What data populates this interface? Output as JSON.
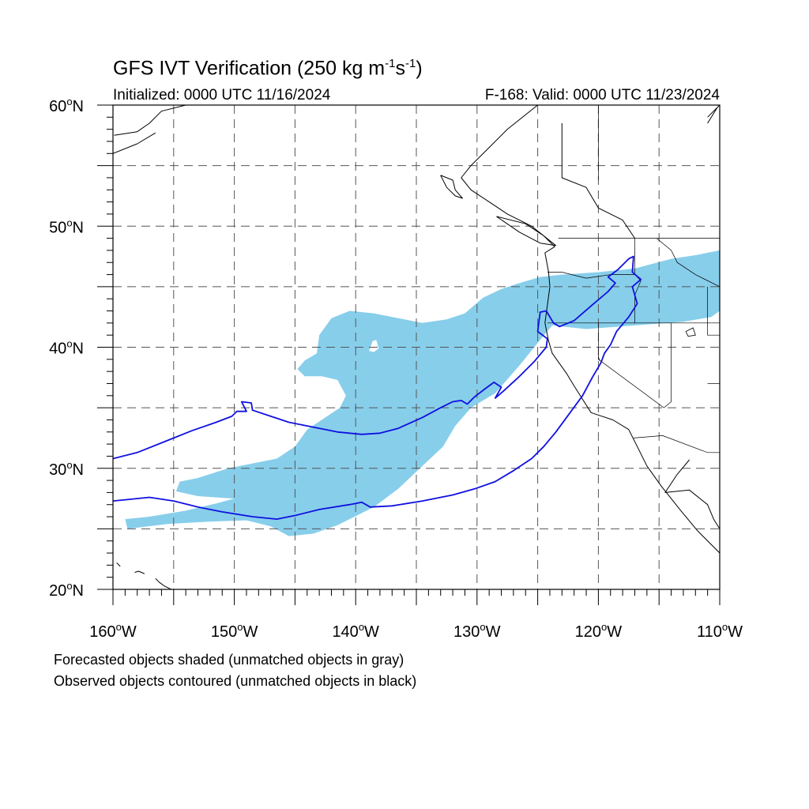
{
  "title": {
    "prefix": "GFS IVT Verification (250 kg m",
    "exp1": "-1",
    "middle": "s",
    "exp2": "-1",
    "suffix": ")"
  },
  "initialized": "Initialized: 0000 UTC 11/16/2024",
  "valid": "F-168: Valid: 0000 UTC 11/23/2024",
  "legend_notes": [
    "Forecasted objects shaded (unmatched objects in gray)",
    "Observed objects contoured (unmatched objects in black)"
  ],
  "map": {
    "extent": {
      "lon": [
        -160,
        -110
      ],
      "lat": [
        20,
        60
      ]
    },
    "lon_labels": [
      {
        "lon": -160,
        "text": "160",
        "hemi": "W"
      },
      {
        "lon": -150,
        "text": "150",
        "hemi": "W"
      },
      {
        "lon": -140,
        "text": "140",
        "hemi": "W"
      },
      {
        "lon": -130,
        "text": "130",
        "hemi": "W"
      },
      {
        "lon": -120,
        "text": "120",
        "hemi": "W"
      },
      {
        "lon": -110,
        "text": "110",
        "hemi": "W"
      }
    ],
    "lat_labels": [
      {
        "lat": 60,
        "text": "60",
        "hemi": "N"
      },
      {
        "lat": 50,
        "text": "50",
        "hemi": "N"
      },
      {
        "lat": 40,
        "text": "40",
        "hemi": "N"
      },
      {
        "lat": 30,
        "text": "30",
        "hemi": "N"
      },
      {
        "lat": 20,
        "text": "20",
        "hemi": "N"
      }
    ],
    "grid_lons": [
      -155,
      -150,
      -145,
      -140,
      -135,
      -130,
      -125,
      -120,
      -115
    ],
    "grid_lats": [
      25,
      30,
      35,
      40,
      45,
      50,
      55
    ],
    "colors": {
      "forecast_fill": "#87ceeb",
      "observed_contour": "#1010e0",
      "coastline": "#000000",
      "grid": "#555555"
    },
    "forecast_object": [
      [
        -158.8,
        25.0
      ],
      [
        -155.5,
        25.4
      ],
      [
        -152,
        25.6
      ],
      [
        -149,
        25.7
      ],
      [
        -147,
        25.2
      ],
      [
        -145.5,
        24.4
      ],
      [
        -143.5,
        24.6
      ],
      [
        -141.5,
        25.3
      ],
      [
        -138.5,
        26.8
      ],
      [
        -136.5,
        28.3
      ],
      [
        -134.5,
        30.2
      ],
      [
        -132.8,
        31.8
      ],
      [
        -131.8,
        33.5
      ],
      [
        -130.5,
        35.0
      ],
      [
        -128.5,
        36.2
      ],
      [
        -126.5,
        38.5
      ],
      [
        -124.8,
        40.6
      ],
      [
        -123.8,
        41.8
      ],
      [
        -121,
        41.5
      ],
      [
        -117,
        41.8
      ],
      [
        -113,
        42.1
      ],
      [
        -110.7,
        42.5
      ],
      [
        -110.0,
        43.0
      ],
      [
        -110.0,
        48.0
      ],
      [
        -112,
        47.6
      ],
      [
        -114,
        47.3
      ],
      [
        -117,
        46.5
      ],
      [
        -120,
        46.2
      ],
      [
        -123,
        46.0
      ],
      [
        -124.8,
        45.8
      ],
      [
        -126.5,
        45.3
      ],
      [
        -128,
        44.8
      ],
      [
        -129.5,
        44.1
      ],
      [
        -131,
        42.8
      ],
      [
        -132.5,
        42.3
      ],
      [
        -134.5,
        42.0
      ],
      [
        -136.5,
        42.4
      ],
      [
        -138.5,
        42.8
      ],
      [
        -140.5,
        43.0
      ],
      [
        -142.0,
        42.4
      ],
      [
        -143.0,
        41.0
      ],
      [
        -143.2,
        39.5
      ],
      [
        -144.2,
        38.9
      ],
      [
        -144.8,
        38.2
      ],
      [
        -144.2,
        37.6
      ],
      [
        -142.8,
        37.6
      ],
      [
        -141.5,
        37.3
      ],
      [
        -140.8,
        36.0
      ],
      [
        -141.3,
        35.0
      ],
      [
        -142.8,
        34.0
      ],
      [
        -144.0,
        33.2
      ],
      [
        -145.0,
        31.8
      ],
      [
        -146.5,
        30.8
      ],
      [
        -148.5,
        30.4
      ],
      [
        -150.5,
        30.0
      ],
      [
        -153.0,
        29.2
      ],
      [
        -154.5,
        28.9
      ],
      [
        -154.8,
        28.1
      ],
      [
        -153.0,
        27.7
      ],
      [
        -150.0,
        27.5
      ],
      [
        -151.5,
        27.1
      ],
      [
        -154.0,
        26.5
      ],
      [
        -157.0,
        26.0
      ],
      [
        -159.0,
        25.8
      ],
      [
        -158.8,
        25.0
      ]
    ],
    "forecast_hole": [
      [
        -138.9,
        39.7
      ],
      [
        -138.6,
        40.5
      ],
      [
        -138.3,
        40.6
      ],
      [
        -138.1,
        39.9
      ],
      [
        -138.5,
        39.6
      ]
    ],
    "observed_object": [
      [
        -160.0,
        30.8
      ],
      [
        -158,
        31.3
      ],
      [
        -155.5,
        32.3
      ],
      [
        -153.5,
        33.1
      ],
      [
        -151.5,
        33.8
      ],
      [
        -150.2,
        34.3
      ],
      [
        -149.8,
        34.7
      ],
      [
        -149.0,
        34.7
      ],
      [
        -149.4,
        35.5
      ],
      [
        -148.6,
        35.4
      ],
      [
        -148.5,
        34.8
      ],
      [
        -147.0,
        34.3
      ],
      [
        -145.5,
        33.8
      ],
      [
        -143.5,
        33.4
      ],
      [
        -141.5,
        33.0
      ],
      [
        -139.5,
        32.8
      ],
      [
        -138.0,
        32.9
      ],
      [
        -136.5,
        33.3
      ],
      [
        -134.5,
        34.2
      ],
      [
        -133.0,
        35.0
      ],
      [
        -132.0,
        35.5
      ],
      [
        -131.3,
        35.6
      ],
      [
        -130.8,
        35.3
      ],
      [
        -130.2,
        35.9
      ],
      [
        -129.3,
        36.6
      ],
      [
        -128.6,
        37.1
      ],
      [
        -128.0,
        36.7
      ],
      [
        -128.5,
        35.8
      ],
      [
        -127.8,
        36.4
      ],
      [
        -126.5,
        37.6
      ],
      [
        -125.3,
        38.8
      ],
      [
        -124.3,
        40.0
      ],
      [
        -124.2,
        40.7
      ],
      [
        -125.0,
        41.3
      ],
      [
        -124.8,
        42.9
      ],
      [
        -124.3,
        43.0
      ],
      [
        -123.7,
        42.0
      ],
      [
        -123.2,
        41.7
      ],
      [
        -122.0,
        42.2
      ],
      [
        -120.5,
        43.5
      ],
      [
        -119.2,
        44.6
      ],
      [
        -118.6,
        45.3
      ],
      [
        -119.2,
        45.8
      ],
      [
        -118.4,
        46.4
      ],
      [
        -117.5,
        47.3
      ],
      [
        -117.1,
        47.5
      ],
      [
        -117.2,
        46.2
      ],
      [
        -116.5,
        45.6
      ],
      [
        -117.2,
        45.0
      ],
      [
        -116.8,
        43.6
      ],
      [
        -117.5,
        42.5
      ],
      [
        -118.5,
        41.3
      ],
      [
        -119.0,
        40.2
      ],
      [
        -119.5,
        39.5
      ],
      [
        -119.8,
        38.7
      ],
      [
        -120.5,
        37.5
      ],
      [
        -121.3,
        36.0
      ],
      [
        -122.4,
        34.5
      ],
      [
        -123.5,
        33.0
      ],
      [
        -124.5,
        31.8
      ],
      [
        -125.5,
        30.8
      ],
      [
        -127.0,
        29.8
      ],
      [
        -128.5,
        28.9
      ],
      [
        -130.2,
        28.3
      ],
      [
        -132.0,
        27.8
      ],
      [
        -134.5,
        27.3
      ],
      [
        -137.0,
        26.9
      ],
      [
        -138.8,
        26.8
      ],
      [
        -139.5,
        27.2
      ],
      [
        -140.5,
        27.0
      ],
      [
        -143.0,
        26.6
      ],
      [
        -145.0,
        26.1
      ],
      [
        -146.5,
        25.8
      ],
      [
        -148.5,
        26.0
      ],
      [
        -151.0,
        26.4
      ],
      [
        -153.0,
        26.8
      ],
      [
        -155.0,
        27.3
      ],
      [
        -157.0,
        27.6
      ],
      [
        -159.0,
        27.4
      ],
      [
        -160.0,
        27.3
      ]
    ],
    "coastlines": [
      [
        [
          -125.0,
          60.0
        ],
        [
          -127.5,
          58.0
        ],
        [
          -129.0,
          56.5
        ],
        [
          -130.5,
          55.0
        ],
        [
          -131.3,
          54.0
        ],
        [
          -130.5,
          53.0
        ],
        [
          -129.0,
          52.0
        ],
        [
          -127.5,
          51.0
        ],
        [
          -125.5,
          50.0
        ],
        [
          -124.5,
          49.2
        ],
        [
          -123.6,
          48.3
        ],
        [
          -124.4,
          47.8
        ],
        [
          -124.1,
          46.2
        ],
        [
          -124.0,
          45.0
        ],
        [
          -124.2,
          43.5
        ],
        [
          -124.4,
          42.0
        ],
        [
          -124.1,
          40.5
        ],
        [
          -123.8,
          39.5
        ],
        [
          -122.6,
          37.8
        ],
        [
          -122.0,
          36.8
        ],
        [
          -121.3,
          35.7
        ],
        [
          -120.6,
          34.6
        ],
        [
          -118.8,
          34.0
        ],
        [
          -117.5,
          33.2
        ],
        [
          -116.8,
          31.8
        ],
        [
          -116.0,
          30.2
        ],
        [
          -114.8,
          28.5
        ],
        [
          -113.2,
          26.5
        ],
        [
          -111.8,
          24.8
        ],
        [
          -110.0,
          23.0
        ]
      ],
      [
        [
          -133.0,
          54.2
        ],
        [
          -132.0,
          53.8
        ],
        [
          -131.8,
          53.0
        ],
        [
          -131.2,
          52.3
        ],
        [
          -131.8,
          52.5
        ],
        [
          -132.5,
          53.2
        ],
        [
          -133.0,
          54.2
        ]
      ],
      [
        [
          -128.4,
          50.8
        ],
        [
          -126.0,
          50.2
        ],
        [
          -124.5,
          49.2
        ],
        [
          -123.5,
          48.4
        ],
        [
          -124.8,
          48.6
        ],
        [
          -126.5,
          49.5
        ],
        [
          -128.4,
          50.8
        ]
      ],
      [
        [
          -123.0,
          58.5
        ],
        [
          -123.0,
          54.0
        ],
        [
          -121.0,
          53.2
        ],
        [
          -120.0,
          51.5
        ],
        [
          -118.0,
          50.5
        ],
        [
          -117.0,
          49.0
        ]
      ],
      [
        [
          -112.5,
          30.7
        ],
        [
          -113.5,
          29.5
        ],
        [
          -114.5,
          28.0
        ],
        [
          -112.5,
          28.2
        ],
        [
          -111.0,
          27.0
        ],
        [
          -110.5,
          25.8
        ],
        [
          -110.0,
          25.0
        ]
      ],
      [
        [
          -159.9,
          57.5
        ],
        [
          -158.0,
          57.8
        ],
        [
          -157.0,
          58.5
        ],
        [
          -156.0,
          59.5
        ],
        [
          -154.0,
          60.0
        ]
      ],
      [
        [
          -160.0,
          56.0
        ],
        [
          -158.0,
          56.8
        ],
        [
          -156.5,
          57.7
        ]
      ],
      [
        [
          -156.5,
          20.9
        ],
        [
          -156.2,
          20.6
        ],
        [
          -155.8,
          20.3
        ],
        [
          -155.0,
          19.9
        ]
      ],
      [
        [
          -157.4,
          21.3
        ],
        [
          -157.9,
          21.5
        ],
        [
          -158.2,
          21.4
        ]
      ],
      [
        [
          -159.7,
          22.2
        ],
        [
          -159.4,
          21.9
        ]
      ],
      [
        [
          -111.0,
          59.0
        ],
        [
          -110.0,
          60.0
        ]
      ],
      [
        [
          -111.0,
          58.5
        ],
        [
          -110.2,
          59.8
        ]
      ]
    ],
    "borders": [
      [
        [
          -123.3,
          49.0
        ],
        [
          -110.0,
          49.0
        ]
      ],
      [
        [
          -117.0,
          49.0
        ],
        [
          -117.0,
          46.0
        ],
        [
          -116.5,
          45.5
        ],
        [
          -117.0,
          44.3
        ],
        [
          -117.0,
          42.0
        ]
      ],
      [
        [
          -124.2,
          46.2
        ],
        [
          -123.0,
          46.2
        ],
        [
          -121.0,
          45.7
        ],
        [
          -119.0,
          46.0
        ],
        [
          -117.0,
          46.0
        ]
      ],
      [
        [
          -124.2,
          42.0
        ],
        [
          -110.0,
          42.0
        ]
      ],
      [
        [
          -120.0,
          42.0
        ],
        [
          -120.0,
          39.0
        ],
        [
          -114.6,
          35.0
        ]
      ],
      [
        [
          -114.0,
          42.0
        ],
        [
          -114.0,
          35.5
        ],
        [
          -114.6,
          35.0
        ]
      ],
      [
        [
          -117.1,
          32.5
        ],
        [
          -114.7,
          32.7
        ],
        [
          -111.0,
          31.3
        ],
        [
          -110.0,
          31.3
        ]
      ],
      [
        [
          -120.0,
          60.0
        ],
        [
          -120.0,
          53.8
        ]
      ],
      [
        [
          -115.2,
          49.0
        ],
        [
          -114.0,
          48.0
        ],
        [
          -113.5,
          47.0
        ],
        [
          -112.0,
          46.0
        ],
        [
          -110.0,
          45.0
        ]
      ],
      [
        [
          -111.0,
          45.0
        ],
        [
          -111.0,
          41.0
        ],
        [
          -110.0,
          41.0
        ]
      ],
      [
        [
          -111.0,
          37.0
        ],
        [
          -110.0,
          37.0
        ]
      ]
    ],
    "lakes": [
      [
        [
          -112.8,
          41.3
        ],
        [
          -112.2,
          41.6
        ],
        [
          -112.0,
          41.0
        ],
        [
          -112.6,
          40.9
        ],
        [
          -112.8,
          41.3
        ]
      ],
      [
        [
          -120.0,
          39.2
        ],
        [
          -119.9,
          38.9
        ]
      ]
    ]
  }
}
